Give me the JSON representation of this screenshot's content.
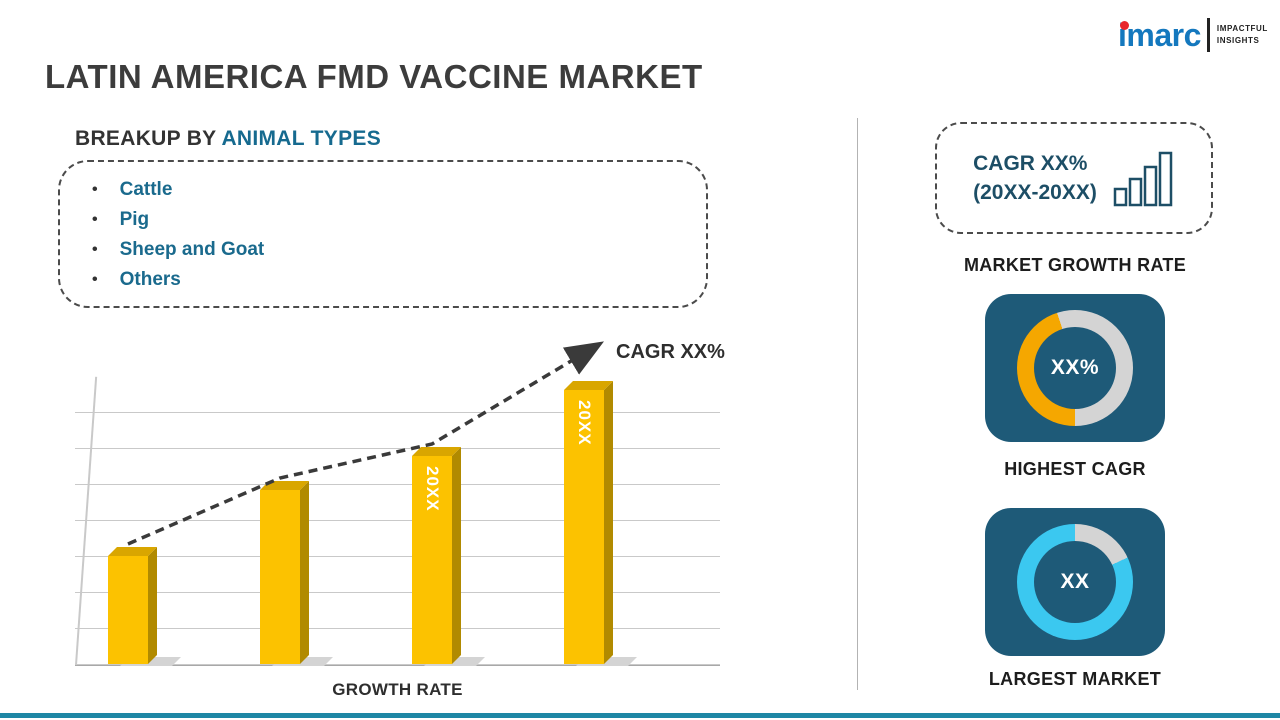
{
  "page": {
    "title": "LATIN AMERICA FMD VACCINE MARKET"
  },
  "logo": {
    "brand": "imarc",
    "tagline1": "IMPACTFUL",
    "tagline2": "INSIGHTS"
  },
  "breakup": {
    "heading_prefix": "BREAKUP BY ",
    "heading_highlight": "ANIMAL TYPES",
    "items": [
      "Cattle",
      "Pig",
      "Sheep and Goat",
      "Others"
    ]
  },
  "chart_data": {
    "type": "bar",
    "title": "",
    "xlabel": "GROWTH RATE",
    "ylabel": "",
    "ylim": [
      0,
      100
    ],
    "values": [
      38,
      61,
      73,
      96
    ],
    "bar_labels": [
      "",
      "",
      "20XX",
      "20XX"
    ],
    "annotation": "CAGR XX%",
    "trendline": "dashed-arrow-up",
    "bar_color": "#FCC200",
    "grid": true,
    "legend": "none"
  },
  "right_panel": {
    "growth_box": {
      "line1": "CAGR XX%",
      "line2": "(20XX-20XX)"
    },
    "growth_label": "MARKET GROWTH RATE",
    "highest_cagr": {
      "value": "XX%",
      "label": "HIGHEST CAGR",
      "arc_color": "#F5A700",
      "track_color": "#D4D4D4",
      "arc_percent": 45,
      "start_deg": 180
    },
    "largest_market": {
      "value": "XX",
      "label": "LARGEST MARKET",
      "arc_color": "#3BC8F0",
      "track_color": "#D4D4D4",
      "arc_percent": 82,
      "start_deg": 65
    },
    "tile_color": "#1E5A78"
  },
  "footer": {
    "bar_color": "#1E87A5"
  }
}
